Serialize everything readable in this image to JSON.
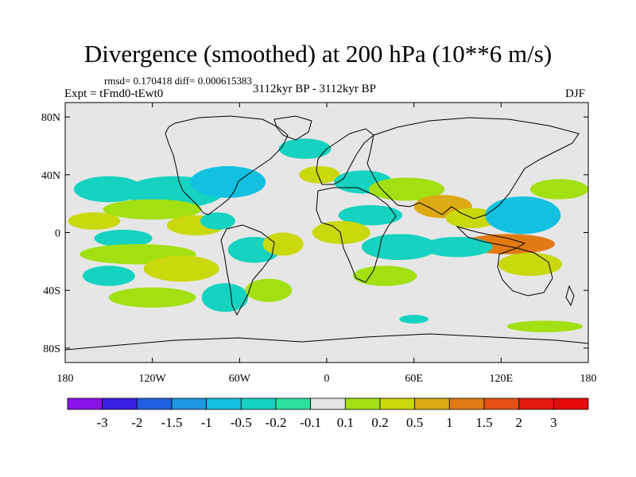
{
  "chart_data": {
    "type": "heatmap",
    "title": "Divergence (smoothed) at 200 hPa (10**6 m/s)",
    "stats_text": "rmsd= 0.170418 diff= 0.000615383",
    "experiment_label": "Expt = tFmd0-tEwt0",
    "period_label": "3112kyr BP - 3112kyr BP",
    "season_label": "DJF",
    "map_projection": "cylindrical equidistant",
    "lon_range": [
      -180,
      180
    ],
    "lat_range": [
      -90,
      90
    ],
    "x_ticks": [
      {
        "value": -180,
        "label": "180"
      },
      {
        "value": -120,
        "label": "120W"
      },
      {
        "value": -60,
        "label": "60W"
      },
      {
        "value": 0,
        "label": "0"
      },
      {
        "value": 60,
        "label": "60E"
      },
      {
        "value": 120,
        "label": "120E"
      },
      {
        "value": 180,
        "label": "180"
      }
    ],
    "y_ticks": [
      {
        "value": 80,
        "label": "80N"
      },
      {
        "value": 40,
        "label": "40N"
      },
      {
        "value": 0,
        "label": "0"
      },
      {
        "value": -40,
        "label": "40S"
      },
      {
        "value": -80,
        "label": "80S"
      }
    ],
    "colorbar": {
      "labels": [
        "-3",
        "-2",
        "-1.5",
        "-1",
        "-0.5",
        "-0.2",
        "-0.1",
        "0.1",
        "0.2",
        "0.5",
        "1",
        "1.5",
        "2",
        "3"
      ],
      "colors": [
        "#8a12e6",
        "#3a1ee6",
        "#2060e0",
        "#1e96e0",
        "#14c0e0",
        "#16d2c0",
        "#2ee0a0",
        "#e6e6e6",
        "#a2e012",
        "#cad80e",
        "#dcaa12",
        "#e27a14",
        "#e65014",
        "#e61a12",
        "#e80a0a"
      ]
    },
    "anomaly_regions": [
      {
        "lon": -105,
        "lat": 28,
        "level": 5,
        "rx": 34,
        "ry": 11
      },
      {
        "lon": -68,
        "lat": 35,
        "level": 4,
        "rx": 26,
        "ry": 11
      },
      {
        "lon": -150,
        "lat": 30,
        "level": 5,
        "rx": 24,
        "ry": 9
      },
      {
        "lon": -120,
        "lat": 16,
        "level": 8,
        "rx": 34,
        "ry": 7
      },
      {
        "lon": -160,
        "lat": 8,
        "level": 9,
        "rx": 18,
        "ry": 6
      },
      {
        "lon": -140,
        "lat": -4,
        "level": 5,
        "rx": 20,
        "ry": 6
      },
      {
        "lon": -90,
        "lat": 5,
        "level": 9,
        "rx": 20,
        "ry": 7
      },
      {
        "lon": -75,
        "lat": 8,
        "level": 5,
        "rx": 12,
        "ry": 6
      },
      {
        "lon": -130,
        "lat": -15,
        "level": 8,
        "rx": 40,
        "ry": 7
      },
      {
        "lon": -150,
        "lat": -30,
        "level": 5,
        "rx": 18,
        "ry": 7
      },
      {
        "lon": -100,
        "lat": -25,
        "level": 9,
        "rx": 26,
        "ry": 9
      },
      {
        "lon": -120,
        "lat": -45,
        "level": 8,
        "rx": 30,
        "ry": 7
      },
      {
        "lon": -50,
        "lat": -12,
        "level": 5,
        "rx": 18,
        "ry": 9
      },
      {
        "lon": -30,
        "lat": -8,
        "level": 9,
        "rx": 14,
        "ry": 8
      },
      {
        "lon": -70,
        "lat": -45,
        "level": 5,
        "rx": 16,
        "ry": 10
      },
      {
        "lon": -40,
        "lat": -40,
        "level": 8,
        "rx": 16,
        "ry": 8
      },
      {
        "lon": -15,
        "lat": 58,
        "level": 5,
        "rx": 18,
        "ry": 7
      },
      {
        "lon": -5,
        "lat": 40,
        "level": 9,
        "rx": 14,
        "ry": 6
      },
      {
        "lon": 25,
        "lat": 35,
        "level": 5,
        "rx": 20,
        "ry": 8
      },
      {
        "lon": 55,
        "lat": 30,
        "level": 8,
        "rx": 26,
        "ry": 8
      },
      {
        "lon": 30,
        "lat": 12,
        "level": 5,
        "rx": 22,
        "ry": 7
      },
      {
        "lon": 10,
        "lat": 0,
        "level": 9,
        "rx": 20,
        "ry": 8
      },
      {
        "lon": 50,
        "lat": -10,
        "level": 5,
        "rx": 26,
        "ry": 9
      },
      {
        "lon": 40,
        "lat": -30,
        "level": 8,
        "rx": 22,
        "ry": 7
      },
      {
        "lon": 80,
        "lat": 18,
        "level": 10,
        "rx": 20,
        "ry": 8
      },
      {
        "lon": 100,
        "lat": 10,
        "level": 9,
        "rx": 18,
        "ry": 7
      },
      {
        "lon": 135,
        "lat": 12,
        "level": 4,
        "rx": 26,
        "ry": 13
      },
      {
        "lon": 160,
        "lat": 30,
        "level": 8,
        "rx": 20,
        "ry": 7
      },
      {
        "lon": 125,
        "lat": -8,
        "level": 11,
        "rx": 32,
        "ry": 7
      },
      {
        "lon": 140,
        "lat": -22,
        "level": 9,
        "rx": 22,
        "ry": 8
      },
      {
        "lon": 90,
        "lat": -10,
        "level": 5,
        "rx": 24,
        "ry": 7
      },
      {
        "lon": 60,
        "lat": -60,
        "level": 5,
        "rx": 10,
        "ry": 3
      },
      {
        "lon": 150,
        "lat": -65,
        "level": 8,
        "rx": 26,
        "ry": 4
      }
    ]
  }
}
